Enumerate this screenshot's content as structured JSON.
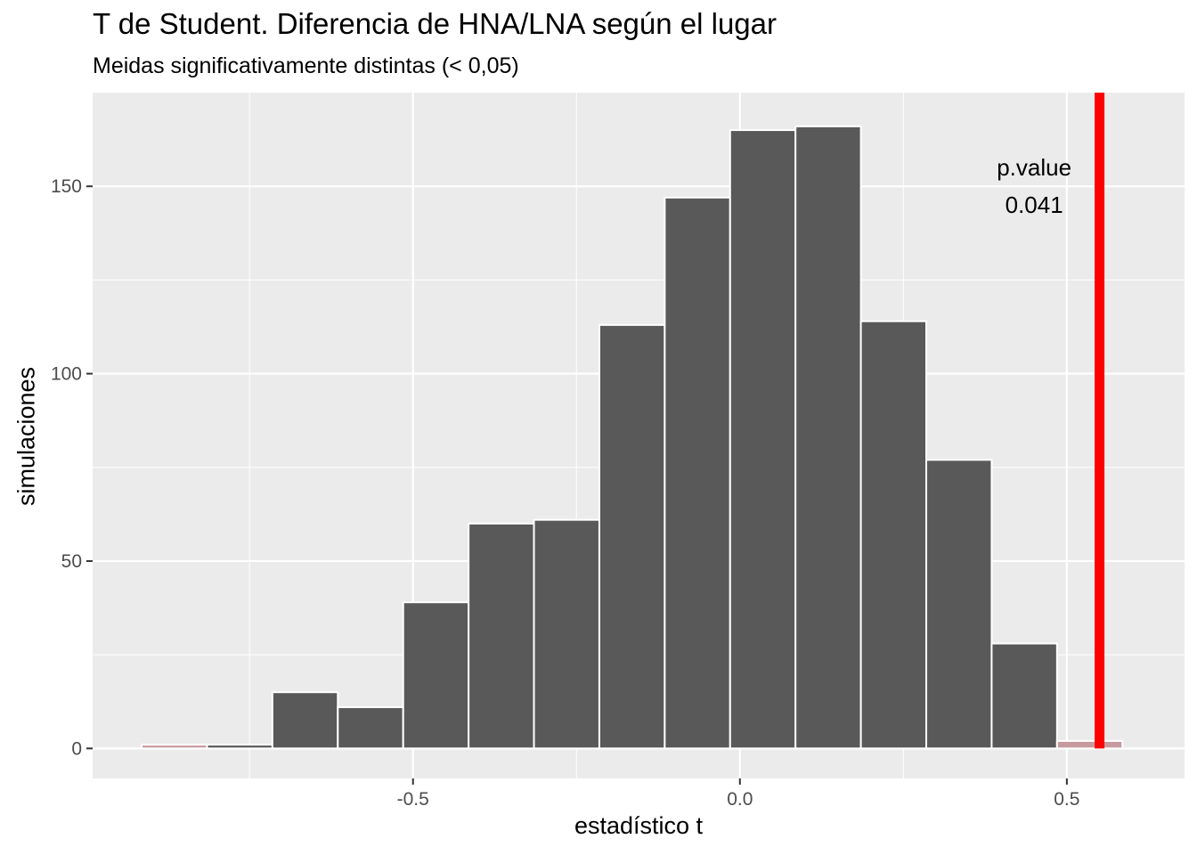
{
  "chart_data": {
    "type": "bar",
    "title": "T de Student. Diferencia de HNA/LNA según el lugar",
    "subtitle": "Meidas significativamente distintas (< 0,05)",
    "xlabel": "estadístico t",
    "ylabel": "simulaciones",
    "xlim": [
      -0.99,
      0.68
    ],
    "ylim": [
      -8,
      175
    ],
    "x_ticks": [
      -0.5,
      0.0,
      0.5
    ],
    "x_tick_labels": [
      "-0.5",
      "0.0",
      "0.5"
    ],
    "y_ticks": [
      0,
      50,
      100,
      150
    ],
    "y_tick_labels": [
      "0",
      "50",
      "100",
      "150"
    ],
    "bins": [
      {
        "x_start": -0.915,
        "x_end": -0.815,
        "value": 1,
        "shaded": true
      },
      {
        "x_start": -0.815,
        "x_end": -0.715,
        "value": 1,
        "shaded": false
      },
      {
        "x_start": -0.715,
        "x_end": -0.615,
        "value": 15,
        "shaded": false
      },
      {
        "x_start": -0.615,
        "x_end": -0.515,
        "value": 11,
        "shaded": false
      },
      {
        "x_start": -0.515,
        "x_end": -0.415,
        "value": 39,
        "shaded": false
      },
      {
        "x_start": -0.415,
        "x_end": -0.315,
        "value": 60,
        "shaded": false
      },
      {
        "x_start": -0.315,
        "x_end": -0.215,
        "value": 61,
        "shaded": false
      },
      {
        "x_start": -0.215,
        "x_end": -0.115,
        "value": 113,
        "shaded": false
      },
      {
        "x_start": -0.115,
        "x_end": -0.015,
        "value": 147,
        "shaded": false
      },
      {
        "x_start": -0.015,
        "x_end": 0.085,
        "value": 165,
        "shaded": false
      },
      {
        "x_start": 0.085,
        "x_end": 0.185,
        "value": 166,
        "shaded": false
      },
      {
        "x_start": 0.185,
        "x_end": 0.285,
        "value": 114,
        "shaded": false
      },
      {
        "x_start": 0.285,
        "x_end": 0.385,
        "value": 77,
        "shaded": false
      },
      {
        "x_start": 0.385,
        "x_end": 0.485,
        "value": 28,
        "shaded": false
      },
      {
        "x_start": 0.485,
        "x_end": 0.585,
        "value": 2,
        "shaded": true
      }
    ],
    "observed_statistic": 0.55,
    "annotation": {
      "label": "p.value",
      "value": "0.041",
      "x": 0.45,
      "y_label": 155,
      "y_value": 145
    },
    "grid": true,
    "legend": "none",
    "colors": {
      "panel_background": "#ebebeb",
      "grid": "#ffffff",
      "bar_fill": "#595959",
      "bar_outline": "#ffffff",
      "shaded_fill": "#c79a9f",
      "observed_line": "#ff0000"
    }
  }
}
